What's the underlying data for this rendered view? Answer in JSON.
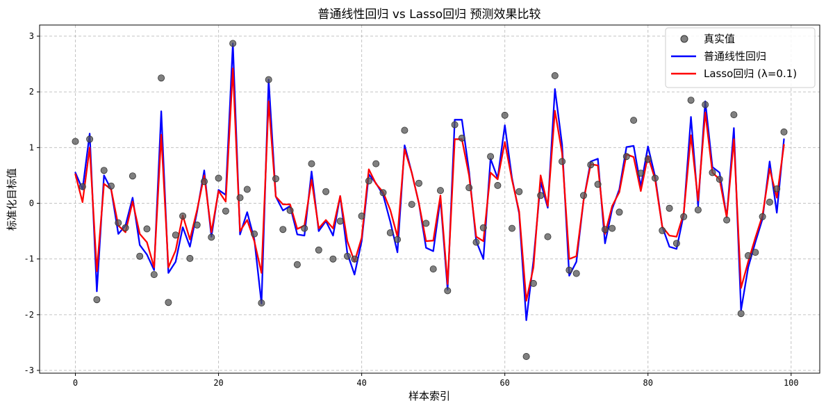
{
  "chart_data": {
    "type": "line",
    "title": "普通线性回归 vs Lasso回归 预测效果比较",
    "xlabel": "样本索引",
    "ylabel": "标准化目标值",
    "xlim": [
      -5,
      104
    ],
    "ylim": [
      -3.05,
      3.2
    ],
    "xticks": [
      0,
      20,
      40,
      60,
      80,
      100
    ],
    "yticks": [
      -3,
      -2,
      -1,
      0,
      1,
      2,
      3
    ],
    "grid": true,
    "legend_position": "top-right",
    "x": [
      0,
      1,
      2,
      3,
      4,
      5,
      6,
      7,
      8,
      9,
      10,
      11,
      12,
      13,
      14,
      15,
      16,
      17,
      18,
      19,
      20,
      21,
      22,
      23,
      24,
      25,
      26,
      27,
      28,
      29,
      30,
      31,
      32,
      33,
      34,
      35,
      36,
      37,
      38,
      39,
      40,
      41,
      42,
      43,
      44,
      45,
      46,
      47,
      48,
      49,
      50,
      51,
      52,
      53,
      54,
      55,
      56,
      57,
      58,
      59,
      60,
      61,
      62,
      63,
      64,
      65,
      66,
      67,
      68,
      69,
      70,
      71,
      72,
      73,
      74,
      75,
      76,
      77,
      78,
      79,
      80,
      81,
      82,
      83,
      84,
      85,
      86,
      87,
      88,
      89,
      90,
      91,
      92,
      93,
      94,
      95,
      96,
      97,
      98,
      99
    ],
    "series": [
      {
        "name": "真实值",
        "kind": "scatter",
        "color": "#555555",
        "values": [
          1.11,
          0.3,
          1.15,
          -1.73,
          0.59,
          0.31,
          -0.35,
          -0.44,
          0.49,
          -0.95,
          -0.46,
          -1.28,
          2.25,
          -1.78,
          -0.57,
          -0.23,
          -0.99,
          -0.39,
          0.39,
          -0.61,
          0.45,
          -0.14,
          2.87,
          0.1,
          0.25,
          -0.55,
          -1.79,
          2.22,
          0.44,
          -0.47,
          -0.13,
          -1.1,
          -0.45,
          0.71,
          -0.84,
          0.21,
          -1.0,
          -0.32,
          -0.95,
          -1.0,
          -0.23,
          0.4,
          0.71,
          0.19,
          -0.53,
          -0.65,
          1.31,
          -0.02,
          0.36,
          -0.36,
          -1.18,
          0.23,
          -1.57,
          1.41,
          1.17,
          0.28,
          -0.7,
          -0.44,
          0.84,
          0.32,
          1.58,
          -0.45,
          0.21,
          -2.75,
          -1.44,
          0.14,
          -0.6,
          2.29,
          0.75,
          -1.2,
          -1.26,
          0.14,
          0.69,
          0.34,
          -0.47,
          -0.45,
          -0.16,
          0.84,
          1.49,
          0.54,
          0.79,
          0.45,
          -0.49,
          -0.09,
          -0.72,
          -0.24,
          1.85,
          -0.12,
          1.77,
          0.55,
          0.43,
          -0.3,
          1.59,
          -1.98,
          -0.94,
          -0.88,
          -0.24,
          0.02,
          0.26,
          1.28
        ]
      },
      {
        "name": "普通线性回归",
        "kind": "line",
        "color": "#0000ff",
        "values": [
          0.55,
          0.25,
          1.25,
          -1.58,
          0.5,
          0.25,
          -0.55,
          -0.4,
          0.1,
          -0.75,
          -0.92,
          -1.2,
          1.65,
          -1.25,
          -1.05,
          -0.43,
          -0.78,
          -0.15,
          0.59,
          -0.6,
          0.24,
          0.15,
          2.87,
          -0.56,
          -0.16,
          -0.65,
          -1.8,
          2.22,
          0.12,
          -0.13,
          -0.05,
          -0.56,
          -0.58,
          0.57,
          -0.5,
          -0.32,
          -0.58,
          0.13,
          -0.9,
          -1.28,
          -0.68,
          0.52,
          0.36,
          0.15,
          -0.33,
          -0.88,
          1.04,
          0.55,
          0.0,
          -0.8,
          -0.86,
          0.08,
          -1.55,
          1.5,
          1.5,
          0.57,
          -0.68,
          -1.0,
          0.8,
          0.45,
          1.4,
          0.45,
          -0.18,
          -2.1,
          -1.03,
          0.38,
          -0.08,
          2.05,
          1.05,
          -1.3,
          -1.05,
          0.05,
          0.75,
          0.8,
          -0.72,
          -0.1,
          0.25,
          1.01,
          1.03,
          0.3,
          1.02,
          0.48,
          -0.42,
          -0.78,
          -0.82,
          -0.2,
          1.55,
          -0.05,
          1.83,
          0.65,
          0.55,
          -0.25,
          1.35,
          -1.92,
          -1.15,
          -0.7,
          -0.28,
          0.75,
          -0.17,
          1.15
        ]
      },
      {
        "name": "Lasso回归 (λ=0.1)",
        "kind": "line",
        "color": "#ff0000",
        "values": [
          0.52,
          0.02,
          1.0,
          -1.22,
          0.35,
          0.25,
          -0.4,
          -0.52,
          0.03,
          -0.55,
          -0.7,
          -1.15,
          1.23,
          -1.15,
          -0.85,
          -0.22,
          -0.65,
          -0.12,
          0.5,
          -0.52,
          0.22,
          0.03,
          2.42,
          -0.5,
          -0.3,
          -0.68,
          -1.25,
          1.83,
          0.12,
          -0.02,
          -0.02,
          -0.46,
          -0.4,
          0.42,
          -0.45,
          -0.3,
          -0.45,
          0.13,
          -0.68,
          -1.05,
          -0.62,
          0.61,
          0.35,
          0.2,
          -0.12,
          -0.6,
          0.97,
          0.55,
          0.0,
          -0.68,
          -0.67,
          0.14,
          -1.45,
          1.15,
          1.15,
          0.5,
          -0.6,
          -0.68,
          0.55,
          0.43,
          1.1,
          0.42,
          -0.15,
          -1.75,
          -1.15,
          0.5,
          -0.05,
          1.66,
          0.9,
          -1.0,
          -0.95,
          0.05,
          0.7,
          0.68,
          -0.55,
          -0.05,
          0.2,
          0.88,
          0.83,
          0.22,
          0.85,
          0.43,
          -0.42,
          -0.58,
          -0.6,
          -0.18,
          1.22,
          0.05,
          1.63,
          0.55,
          0.43,
          -0.25,
          1.15,
          -1.52,
          -1.05,
          -0.62,
          -0.22,
          0.62,
          0.1,
          1.05
        ]
      }
    ]
  }
}
